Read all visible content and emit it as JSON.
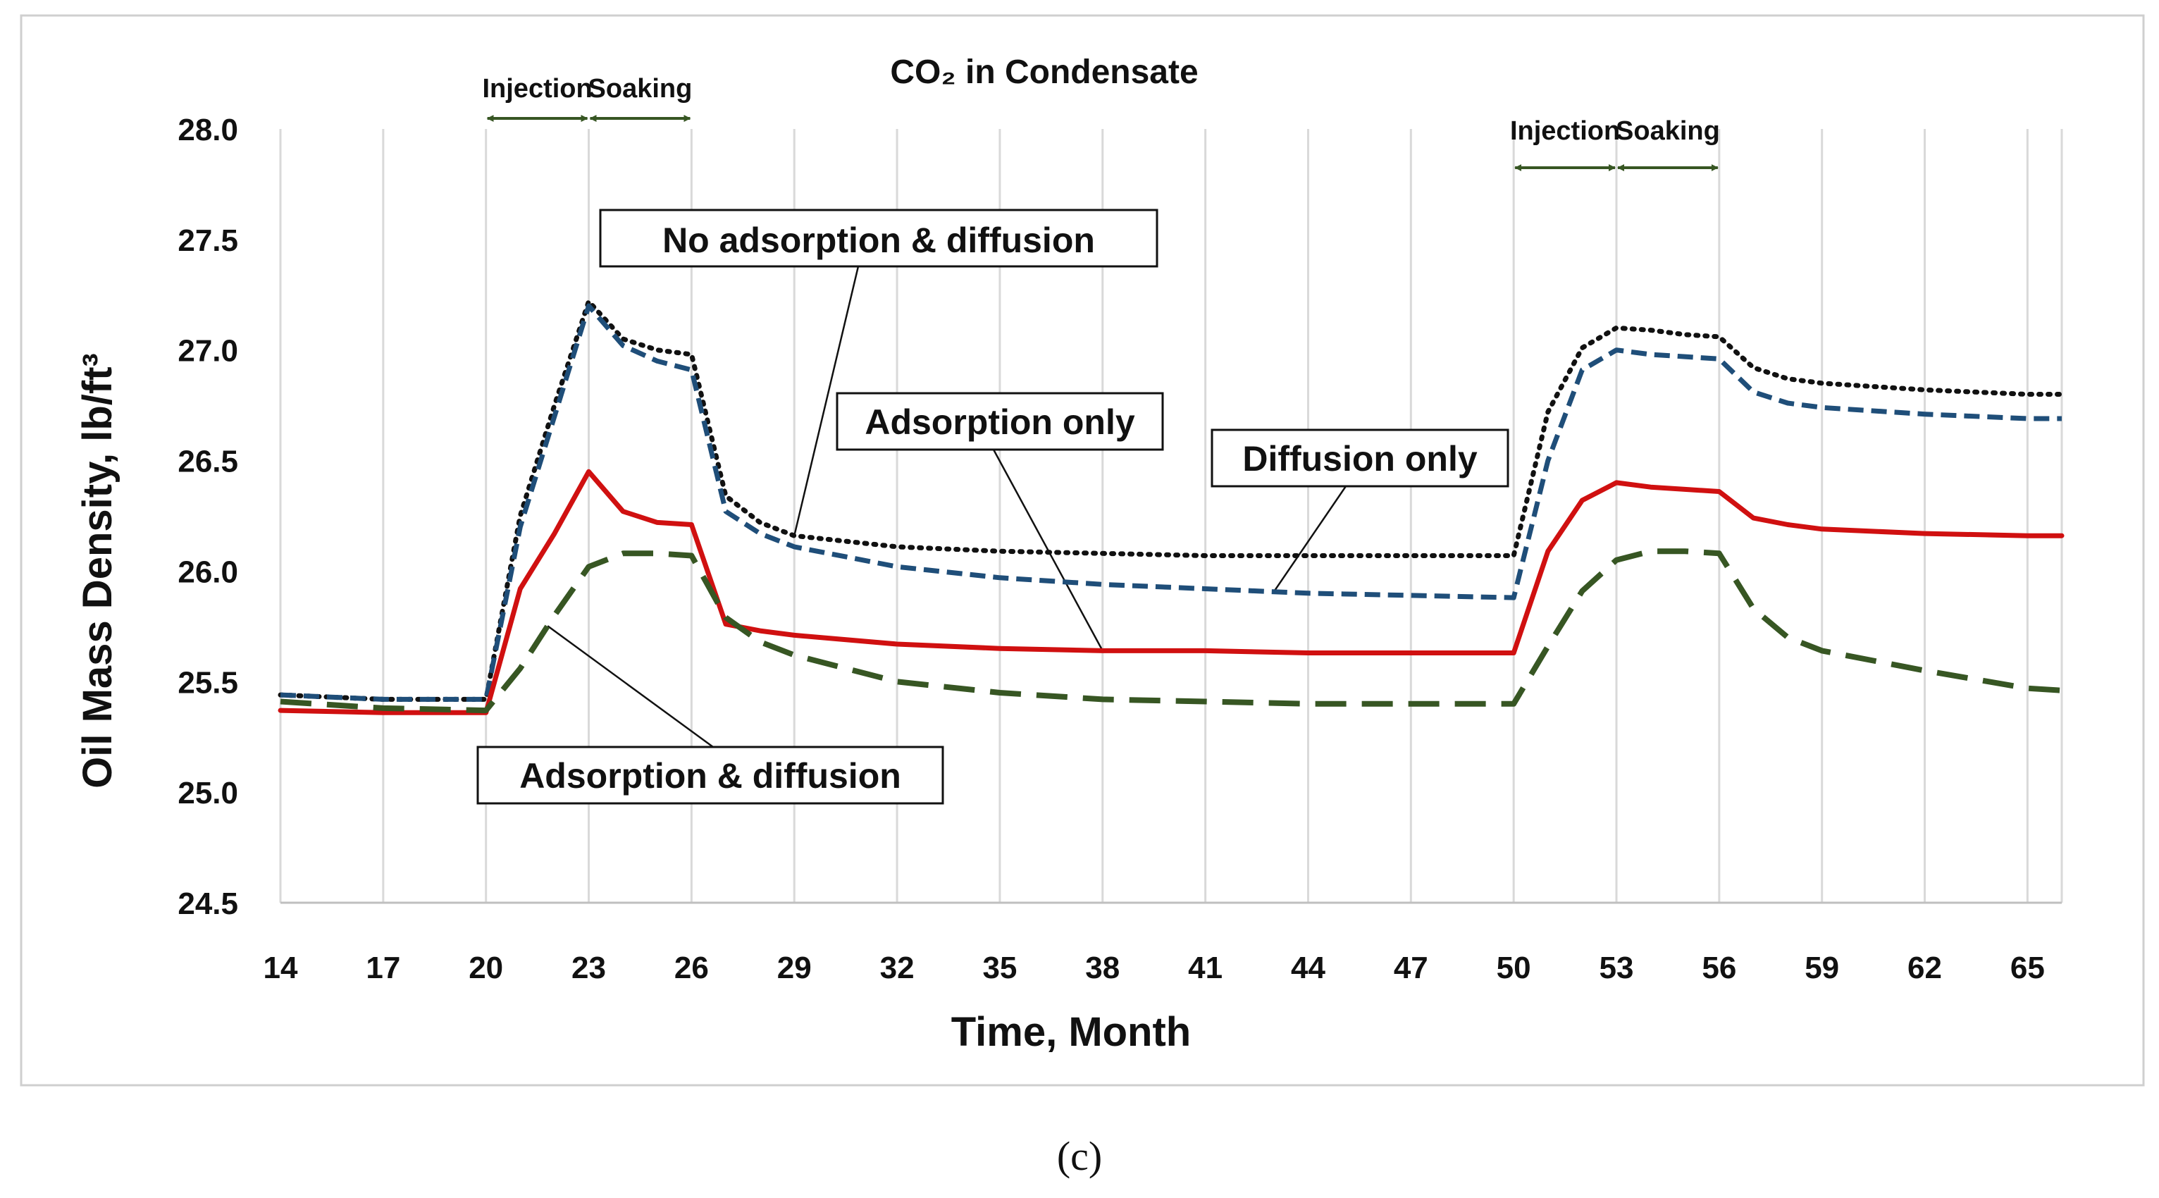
{
  "chart_data": {
    "type": "line",
    "title": "CO₂ in Condensate",
    "xlabel": "Time, Month",
    "ylabel": "Oil Mass Density, lb/ft³",
    "caption": "(c)",
    "xlim": [
      14,
      66
    ],
    "ylim": [
      24.5,
      28.0
    ],
    "x_ticks": [
      14,
      17,
      20,
      23,
      26,
      29,
      32,
      35,
      38,
      41,
      44,
      47,
      50,
      53,
      56,
      59,
      62,
      65
    ],
    "y_ticks": [
      "24.5",
      "25.0",
      "25.5",
      "26.0",
      "26.5",
      "27.0",
      "27.5",
      "28.0"
    ],
    "grid": "vertical",
    "phases": [
      {
        "label": "Injection",
        "start": 20,
        "end": 23
      },
      {
        "label": "Soaking",
        "start": 23,
        "end": 26
      },
      {
        "label": "Injection",
        "start": 50,
        "end": 53
      },
      {
        "label": "Soaking",
        "start": 53,
        "end": 56
      }
    ],
    "series": [
      {
        "name": "No adsorption & diffusion",
        "color": "#111111",
        "style": "dotted",
        "x": [
          14,
          17,
          20,
          21,
          22,
          23,
          24,
          25,
          26,
          27,
          28,
          29,
          32,
          35,
          38,
          41,
          44,
          47,
          50,
          51,
          52,
          53,
          54,
          55,
          56,
          57,
          58,
          59,
          62,
          65,
          66
        ],
        "values": [
          25.44,
          25.42,
          25.42,
          26.25,
          26.75,
          27.22,
          27.05,
          27.0,
          26.98,
          26.34,
          26.22,
          26.16,
          26.11,
          26.09,
          26.08,
          26.07,
          26.07,
          26.07,
          26.07,
          26.72,
          27.01,
          27.1,
          27.09,
          27.07,
          27.06,
          26.92,
          26.87,
          26.85,
          26.82,
          26.8,
          26.8
        ]
      },
      {
        "name": "Adsorption only",
        "color": "#1F4E79",
        "style": "dashed",
        "x": [
          14,
          17,
          20,
          21,
          22,
          23,
          24,
          25,
          26,
          27,
          28,
          29,
          32,
          35,
          38,
          41,
          44,
          47,
          50,
          51,
          52,
          53,
          54,
          55,
          56,
          57,
          58,
          59,
          62,
          65,
          66
        ],
        "values": [
          25.44,
          25.42,
          25.42,
          26.2,
          26.7,
          27.2,
          27.02,
          26.95,
          26.91,
          26.27,
          26.17,
          26.11,
          26.02,
          25.97,
          25.94,
          25.92,
          25.9,
          25.89,
          25.88,
          26.5,
          26.91,
          27.0,
          26.98,
          26.97,
          26.96,
          26.81,
          26.76,
          26.74,
          26.71,
          26.69,
          26.69
        ]
      },
      {
        "name": "Diffusion only",
        "color": "#D01010",
        "style": "solid",
        "x": [
          14,
          17,
          20,
          21,
          22,
          23,
          24,
          25,
          26,
          27,
          28,
          29,
          32,
          35,
          38,
          41,
          44,
          47,
          50,
          51,
          52,
          53,
          54,
          55,
          56,
          57,
          58,
          59,
          62,
          65,
          66
        ],
        "values": [
          25.37,
          25.36,
          25.36,
          25.92,
          26.17,
          26.45,
          26.27,
          26.22,
          26.21,
          25.76,
          25.73,
          25.71,
          25.67,
          25.65,
          25.64,
          25.64,
          25.63,
          25.63,
          25.63,
          26.09,
          26.32,
          26.4,
          26.38,
          26.37,
          26.36,
          26.24,
          26.21,
          26.19,
          26.17,
          26.16,
          26.16
        ]
      },
      {
        "name": "Adsorption & diffusion",
        "color": "#375623",
        "style": "longdash",
        "x": [
          14,
          17,
          20,
          21,
          22,
          23,
          24,
          25,
          26,
          27,
          28,
          29,
          32,
          35,
          38,
          41,
          44,
          47,
          50,
          51,
          52,
          53,
          54,
          55,
          56,
          57,
          58,
          59,
          62,
          65,
          66
        ],
        "values": [
          25.41,
          25.38,
          25.37,
          25.56,
          25.8,
          26.02,
          26.08,
          26.08,
          26.07,
          25.79,
          25.68,
          25.62,
          25.5,
          25.45,
          25.42,
          25.41,
          25.4,
          25.4,
          25.4,
          25.66,
          25.91,
          26.05,
          26.09,
          26.09,
          26.08,
          25.83,
          25.7,
          25.64,
          25.55,
          25.47,
          25.46
        ]
      }
    ]
  }
}
